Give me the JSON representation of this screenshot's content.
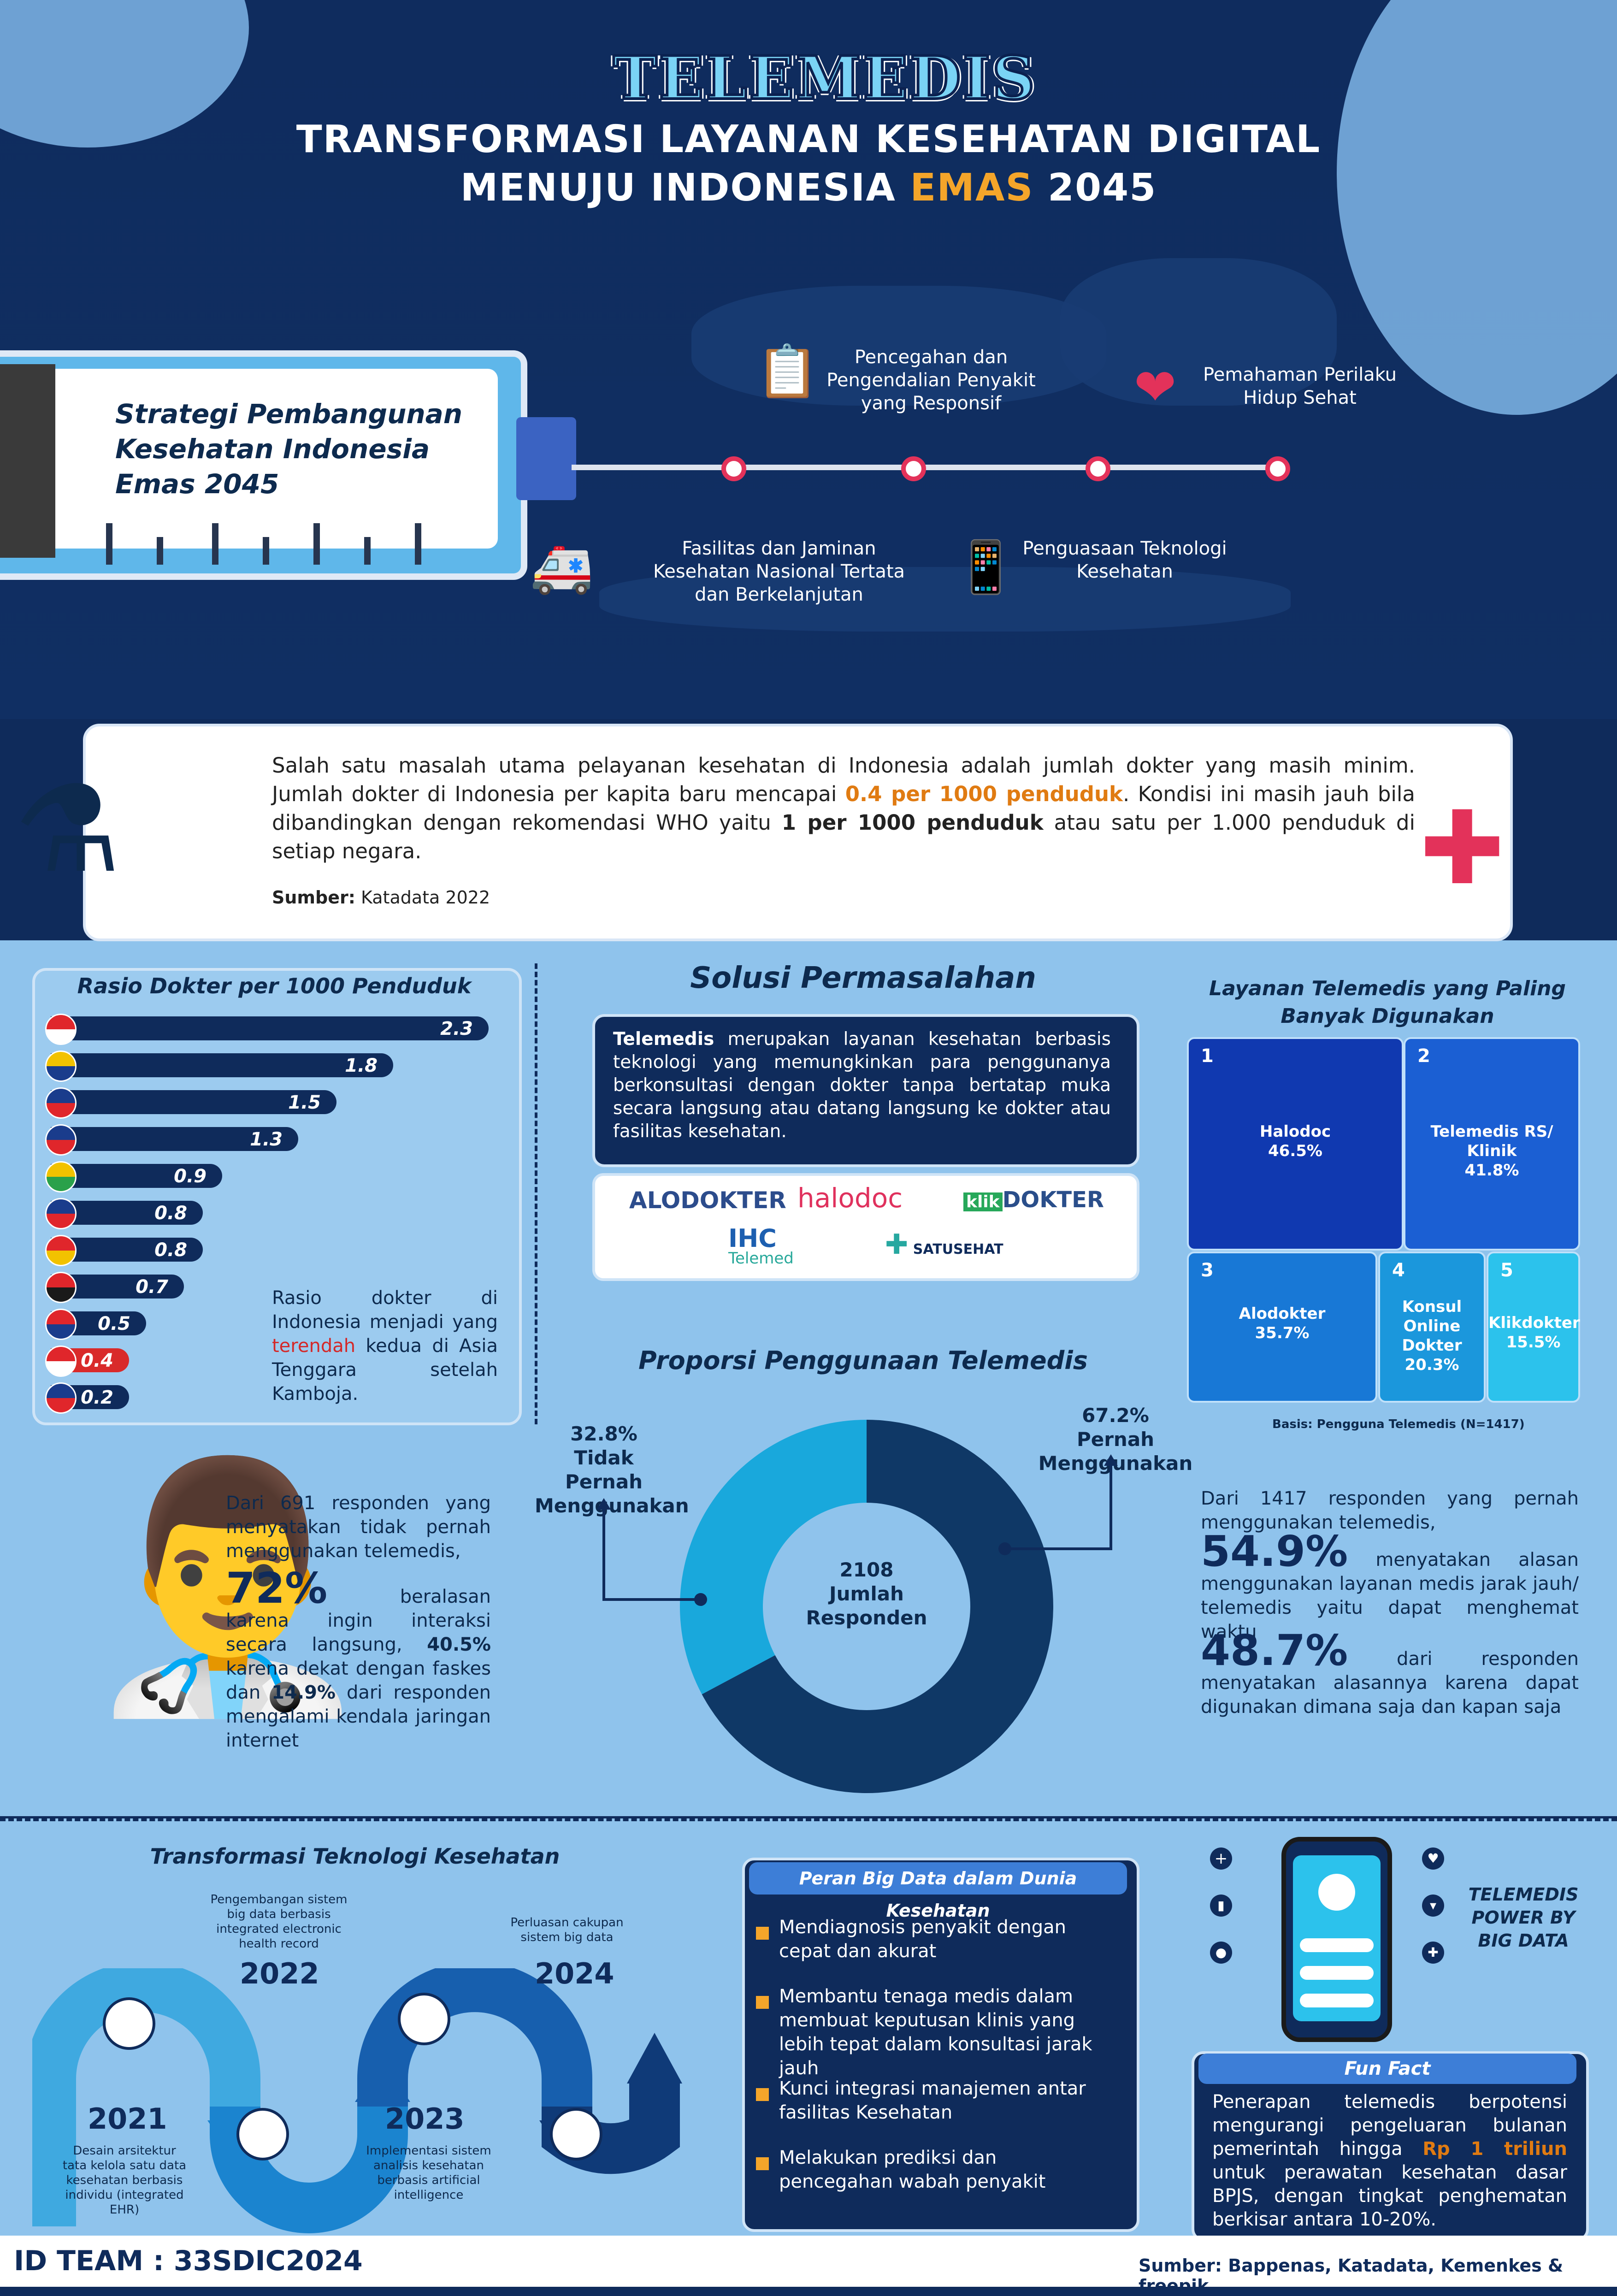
{
  "header": {
    "brand": "TELEMEDIS",
    "title_line1": "TRANSFORMASI LAYANAN KESEHATAN DIGITAL",
    "title_line2_a": "MENUJU INDONESIA ",
    "title_line2_emas": "EMAS",
    "title_line2_b": " 2045"
  },
  "strategy": {
    "title": "Strategi Pembangunan Kesehatan Indonesia Emas 2045",
    "items": [
      "Pencegahan dan Pengendalian Penyakit yang Responsif",
      "Pemahaman Perilaku Hidup Sehat",
      "Fasilitas dan Jaminan Kesehatan Nasional Tertata dan Berkelanjutan",
      "Penguasaan Teknologi Kesehatan"
    ]
  },
  "info": {
    "p1": "Salah satu masalah utama pelayanan kesehatan di Indonesia adalah jumlah dokter yang masih minim. Jumlah dokter di Indonesia per kapita baru mencapai ",
    "h1": "0.4 per 1000 penduduk",
    "p2": ". Kondisi ini masih jauh bila dibandingkan dengan rekomendasi WHO yaitu ",
    "h2": "1 per 1000 penduduk",
    "p3": " atau satu per 1.000 penduduk di setiap negara.",
    "source_label": "Sumber:",
    "source": " Katadata 2022"
  },
  "ratio": {
    "title": "Rasio Dokter per 1000 Penduduk",
    "values": [
      "2.3",
      "1.8",
      "1.5",
      "1.3",
      "0.9",
      "0.8",
      "0.8",
      "0.7",
      "0.5",
      "0.4",
      "0.2"
    ],
    "note_a": "Rasio dokter di Indonesia menjadi yang ",
    "note_hl": "terendah",
    "note_b": " kedua di Asia Tenggara setelah Kamboja."
  },
  "solution": {
    "title": "Solusi Permasalahan",
    "lead": "Telemedis",
    "text": " merupakan layanan kesehatan berbasis teknologi yang memungkinkan para penggunanya berkonsultasi dengan dokter tanpa bertatap muka secara langsung atau datang langsung ke dokter atau fasilitas kesehatan.",
    "logos": {
      "alodokter": "ALODOKTER",
      "halodoc": "halodoc",
      "klik_a": "klik",
      "klik_b": "DOKTER",
      "ihc_a": "IHC",
      "ihc_b": "Telemed",
      "satusehat": "SATUSEHAT"
    }
  },
  "services": {
    "title": "Layanan Telemedis yang Paling Banyak Digunakan",
    "tiles": [
      {
        "n": "1",
        "name": "Halodoc",
        "pct": "46.5%"
      },
      {
        "n": "2",
        "name": "Telemedis RS/ Klinik",
        "pct": "41.8%"
      },
      {
        "n": "3",
        "name": "Alodokter",
        "pct": "35.7%"
      },
      {
        "n": "4",
        "name": "Konsul Online Dokter",
        "pct": "20.3%"
      },
      {
        "n": "5",
        "name": "Klikdokter",
        "pct": "15.5%"
      }
    ],
    "basis": "Basis: Pengguna Telemedis (N=1417)"
  },
  "proportion": {
    "title": "Proporsi Penggunaan Telemedis",
    "never_pct": "32.8%",
    "never_label": "Tidak Pernah Menggunakan",
    "ever_pct": "67.2%",
    "ever_label": "Pernah Menggunakan",
    "center_n": "2108",
    "center_l1": "Jumlah",
    "center_l2": "Responden",
    "share_ever": 0.672
  },
  "left_stats": {
    "intro": "Dari 691 responden yang menyatakan tidak pernah menggunakan telemedis,",
    "big": "72%",
    "t1": " beralasan karena ingin interaksi secara langsung, ",
    "b1": "40.5%",
    "t2": " karena dekat dengan faskes dan ",
    "b2": "14.9%",
    "t3": " dari responden mengalami kendala jaringan internet"
  },
  "right_stats": {
    "intro": "Dari 1417 responden yang pernah menggunakan telemedis,",
    "big1": "54.9%",
    "t1": " menyatakan alasan menggunakan layanan medis jarak jauh/ telemedis yaitu dapat menghemat waktu",
    "big2": "48.7%",
    "t2": " dari responden menyatakan alasannya karena dapat digunakan dimana saja dan kapan saja"
  },
  "transform": {
    "title": "Transformasi Teknologi Kesehatan",
    "milestones": [
      {
        "year": "2021",
        "note": "Desain arsitektur tata kelola satu data kesehatan berbasis individu (integrated EHR)"
      },
      {
        "year": "2022",
        "note": "Pengembangan sistem big data berbasis integrated electronic health record"
      },
      {
        "year": "2023",
        "note": "Implementasi sistem analisis kesehatan berbasis artificial intelligence"
      },
      {
        "year": "2024",
        "note": "Perluasan cakupan sistem big data"
      }
    ]
  },
  "bigdata": {
    "title": "Peran Big Data dalam Dunia Kesehatan",
    "items": [
      "Mendiagnosis penyakit dengan cepat dan akurat",
      "Membantu tenaga medis dalam membuat keputusan klinis yang lebih tepat dalam konsultasi jarak jauh",
      "Kunci integrasi manajemen antar fasilitas Kesehatan",
      "Melakukan prediksi dan pencegahan wabah penyakit"
    ]
  },
  "power": "TELEMEDIS POWER BY BIG DATA",
  "funfact": {
    "title": "Fun Fact",
    "t1": "Penerapan telemedis berpotensi mengurangi pengeluaran bulanan pemerintah hingga ",
    "hl": "Rp 1 triliun",
    "t2": " untuk perawatan kesehatan dasar BPJS, dengan tingkat penghematan berkisar antara 10-20%."
  },
  "footer": {
    "team": "ID TEAM : 33SDIC2024",
    "source": "Sumber: Bappenas, Katadata, Kemenkes & freepik"
  },
  "colors": {
    "navy": "#0f2b5b",
    "accent": "#f4a52a",
    "red": "#d92a2a",
    "light_blue": "#8fc3ec",
    "cyan": "#19a8dc"
  }
}
